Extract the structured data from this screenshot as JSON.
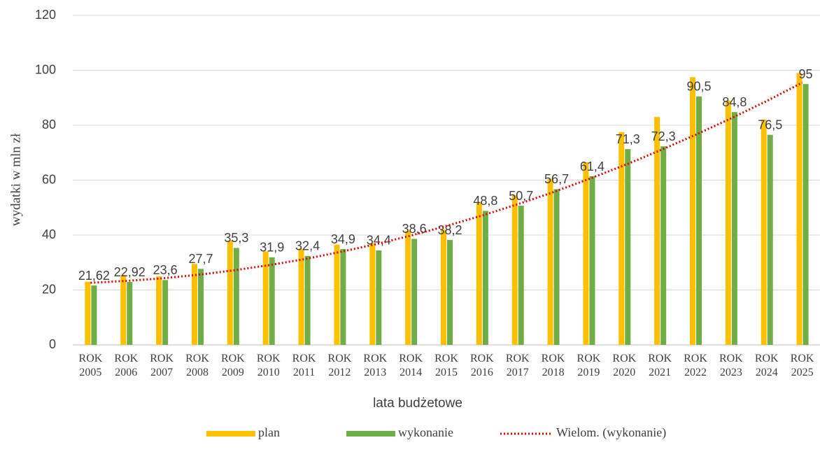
{
  "chart_data": {
    "type": "bar",
    "x_label": "lata budżetowe",
    "y_label": "wydatki w mln zł",
    "categories": [
      "ROK 2005",
      "ROK 2006",
      "ROK 2007",
      "ROK 2008",
      "ROK 2009",
      "ROK 2010",
      "ROK 2011",
      "ROK 2012",
      "ROK 2013",
      "ROK 2014",
      "ROK 2015",
      "ROK 2016",
      "ROK 2017",
      "ROK 2018",
      "ROK 2019",
      "ROK 2020",
      "ROK 2021",
      "ROK 2022",
      "ROK 2023",
      "ROK 2024",
      "ROK 2025"
    ],
    "series": [
      {
        "name": "plan",
        "color": "#ffc000",
        "values": [
          23,
          25.5,
          25,
          29.5,
          38,
          34,
          35,
          36.5,
          37,
          41.5,
          42,
          52,
          54.5,
          60.5,
          66.5,
          77.5,
          83,
          97.5,
          89,
          82,
          99
        ]
      },
      {
        "name": "wykonanie",
        "color": "#70ad47",
        "values": [
          21.62,
          22.92,
          23.6,
          27.7,
          35.3,
          31.9,
          32.4,
          34.9,
          34.4,
          38.6,
          38.2,
          48.8,
          50.7,
          56.7,
          61.4,
          71.3,
          72.3,
          90.5,
          84.8,
          76.5,
          95
        ],
        "value_labels": [
          "21,62",
          "22,92",
          "23,6",
          "27,7",
          "35,3",
          "31,9",
          "32,4",
          "34,9",
          "34,4",
          "38,6",
          "38,2",
          "48,8",
          "50,7",
          "56,7",
          "61,4",
          "71,3",
          "72,3",
          "90,5",
          "84,8",
          "76,5",
          "95"
        ]
      },
      {
        "name": "Wielom. (wykonanie)",
        "color": "#e00000",
        "line": "dotted",
        "values": [
          22.6,
          23.3,
          24.2,
          25.5,
          27.1,
          29.0,
          31.2,
          33.8,
          36.6,
          39.8,
          43.3,
          47.1,
          51.2,
          55.6,
          60.4,
          65.4,
          70.8,
          76.5,
          82.5,
          88.8,
          95.5
        ]
      }
    ],
    "ylim": [
      0,
      120
    ],
    "yticks": [
      0,
      20,
      40,
      60,
      80,
      100,
      120
    ],
    "grid": true,
    "legend": "bottom"
  }
}
